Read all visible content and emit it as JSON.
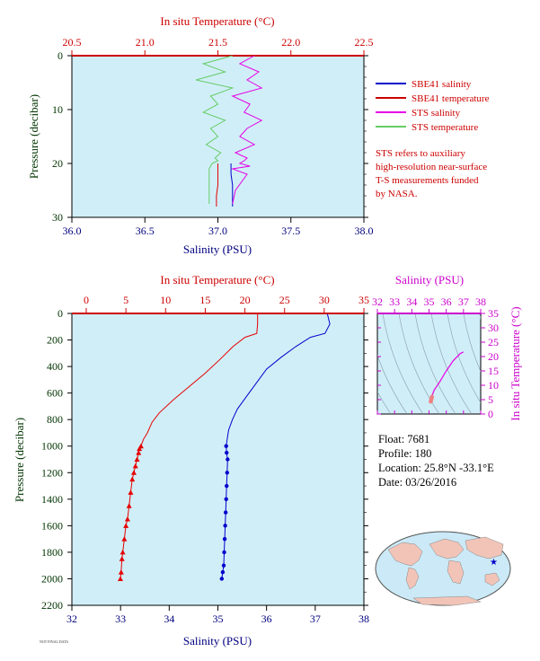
{
  "top_chart": {
    "top_axis_label": "In situ Temperature (°C)",
    "bottom_axis_label": "Salinity (PSU)",
    "left_axis_label": "Pressure (decibar)",
    "temp_ticks": [
      "20.5",
      "21.0",
      "21.5",
      "22.0",
      "22.5"
    ],
    "sal_ticks": [
      "36.0",
      "36.5",
      "37.0",
      "37.5",
      "38.0"
    ],
    "pres_ticks": [
      "0",
      "10",
      "20",
      "30"
    ],
    "legend": [
      {
        "label": "SBE41 salinity",
        "color": "#0000cc"
      },
      {
        "label": "SBE41 temperature",
        "color": "#cc0000"
      },
      {
        "label": "STS salinity",
        "color": "#e600e6"
      },
      {
        "label": "STS temperature",
        "color": "#66cc66"
      }
    ],
    "note": [
      "STS refers to auxiliary",
      "high-resolution near-surface",
      "T-S measurements funded",
      "by NASA."
    ]
  },
  "main_chart": {
    "top_axis_label": "In situ Temperature (°C)",
    "bottom_axis_label": "Salinity (PSU)",
    "left_axis_label": "Pressure (decibar)",
    "temp_ticks": [
      "0",
      "5",
      "10",
      "15",
      "20",
      "25",
      "30",
      "35"
    ],
    "sal_ticks": [
      "32",
      "33",
      "34",
      "35",
      "36",
      "37",
      "38"
    ],
    "pres_ticks": [
      "0",
      "200",
      "400",
      "600",
      "800",
      "1000",
      "1200",
      "1400",
      "1600",
      "1800",
      "2000",
      "2200"
    ]
  },
  "ts_chart": {
    "top_axis_label": "Salinity (PSU)",
    "right_axis_label": "In situ Temperature (°C)",
    "sal_ticks": [
      "32",
      "33",
      "34",
      "35",
      "36",
      "37",
      "38"
    ],
    "temp_ticks": [
      "0",
      "5",
      "10",
      "15",
      "20",
      "25",
      "30",
      "35"
    ]
  },
  "info": {
    "float": "Float:  7681",
    "profile": "Profile:  180",
    "location": "Location:  25.8°N  -33.1°E",
    "date": "Date:  03/26/2016"
  },
  "footer_tag": "NOT FINAL DATA",
  "colors": {
    "plot_bg": "#d0eef8",
    "temperature": "#e60000",
    "salinity": "#0000cc",
    "sts_salinity": "#e600e6",
    "sts_temperature": "#66cc66"
  },
  "chart_data": [
    {
      "type": "line",
      "panel": "top",
      "series": [
        {
          "name": "SBE41 salinity",
          "axis": "salinity",
          "x": [
            37.09,
            37.09,
            37.1,
            37.1,
            37.1
          ],
          "y": [
            20,
            22,
            24,
            26,
            28
          ]
        },
        {
          "name": "SBE41 temperature",
          "axis": "temperature",
          "x": [
            21.5,
            21.5,
            21.5,
            21.49,
            21.49
          ],
          "y": [
            20,
            22,
            24,
            26,
            28
          ]
        },
        {
          "name": "STS salinity",
          "axis": "salinity",
          "x": [
            37.25,
            37.15,
            37.28,
            37.2,
            37.3,
            37.1,
            37.22,
            37.18,
            37.3,
            37.2,
            37.15,
            37.25,
            37.12,
            37.2,
            37.18,
            37.15,
            37.22,
            37.1,
            37.2,
            37.12,
            37.1
          ],
          "y": [
            0,
            1.5,
            3,
            4.5,
            6,
            7.5,
            9,
            10.5,
            12,
            13.5,
            15,
            16.5,
            18,
            19,
            19.5,
            20,
            20.5,
            21,
            22,
            25,
            27.5
          ]
        },
        {
          "name": "STS temperature",
          "axis": "temperature",
          "x": [
            21.6,
            21.4,
            21.55,
            21.35,
            21.6,
            21.45,
            21.5,
            21.4,
            21.55,
            21.45,
            21.5,
            21.42,
            21.52,
            21.48,
            21.5,
            21.46,
            21.45,
            21.44,
            21.44,
            21.44,
            21.44
          ],
          "y": [
            0,
            1.5,
            3,
            4.5,
            6,
            7.5,
            9,
            10.5,
            12,
            13.5,
            15,
            16.5,
            18,
            19,
            19.5,
            20,
            20.5,
            21,
            22,
            25,
            27.5
          ]
        }
      ],
      "ylim": [
        30,
        0
      ],
      "temp_lim": [
        20.5,
        22.5
      ],
      "sal_lim": [
        36.0,
        38.0
      ]
    },
    {
      "type": "line",
      "panel": "main",
      "series": [
        {
          "name": "temperature",
          "axis": "temperature",
          "x": [
            21.6,
            21.6,
            21.5,
            20.0,
            18.5,
            16.8,
            15.0,
            13.0,
            11.0,
            9.2,
            8.3,
            7.7,
            7.2,
            6.9,
            6.7,
            6.6,
            6.4,
            6.2,
            6.0,
            5.8,
            5.6,
            5.4,
            5.2,
            5.0,
            4.8,
            4.6,
            4.5,
            4.4,
            4.3
          ],
          "y": [
            5,
            80,
            150,
            180,
            250,
            350,
            450,
            550,
            650,
            750,
            820,
            900,
            950,
            1000,
            1020,
            1050,
            1100,
            1150,
            1200,
            1250,
            1350,
            1450,
            1550,
            1600,
            1700,
            1800,
            1850,
            1950,
            2000
          ]
        },
        {
          "name": "salinity",
          "axis": "salinity",
          "x": [
            37.25,
            37.3,
            37.2,
            36.9,
            36.6,
            36.3,
            36.0,
            35.8,
            35.6,
            35.4,
            35.3,
            35.22,
            35.19,
            35.17,
            35.18,
            35.2,
            35.19,
            35.18,
            35.17,
            35.16,
            35.15,
            35.14,
            35.13,
            35.12,
            35.1,
            35.08
          ],
          "y": [
            5,
            80,
            150,
            180,
            250,
            330,
            420,
            520,
            620,
            720,
            800,
            880,
            950,
            1000,
            1050,
            1100,
            1200,
            1300,
            1400,
            1500,
            1600,
            1700,
            1800,
            1900,
            1950,
            2000
          ]
        }
      ],
      "ylim": [
        2200,
        0
      ],
      "temp_lim": [
        0,
        35
      ],
      "sal_lim": [
        32,
        38
      ]
    },
    {
      "type": "line",
      "panel": "ts",
      "series": [
        {
          "name": "T-S profile",
          "x": [
            35.1,
            35.15,
            35.3,
            35.6,
            36.0,
            36.4,
            36.8,
            37.0
          ],
          "y": [
            4.3,
            6.0,
            8.3,
            11.0,
            15.0,
            18.5,
            21.0,
            21.6
          ]
        }
      ],
      "xlim": [
        32,
        38
      ],
      "ylim": [
        0,
        35
      ]
    }
  ]
}
